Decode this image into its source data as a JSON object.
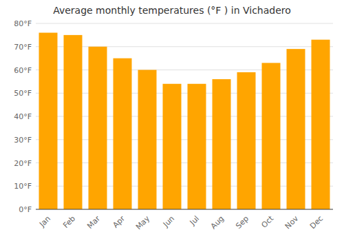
{
  "chart_data": {
    "type": "bar",
    "title": "Average monthly temperatures (°F ) in Vichadero",
    "categories": [
      "Jan",
      "Feb",
      "Mar",
      "Apr",
      "May",
      "Jun",
      "Jul",
      "Aug",
      "Sep",
      "Oct",
      "Nov",
      "Dec"
    ],
    "values": [
      76,
      75,
      70,
      65,
      60,
      54,
      54,
      56,
      59,
      63,
      69,
      73
    ],
    "color": "#FFA500",
    "ylim": [
      0,
      80
    ],
    "yticks": [
      {
        "value": 0,
        "label": "0°F"
      },
      {
        "value": 10,
        "label": "10°F"
      },
      {
        "value": 20,
        "label": "20°F"
      },
      {
        "value": 30,
        "label": "30°F"
      },
      {
        "value": 40,
        "label": "40°F"
      },
      {
        "value": 50,
        "label": "50°F"
      },
      {
        "value": 60,
        "label": "60°F"
      },
      {
        "value": 70,
        "label": "70°F"
      },
      {
        "value": 80,
        "label": "80°F"
      }
    ],
    "grid": true
  }
}
